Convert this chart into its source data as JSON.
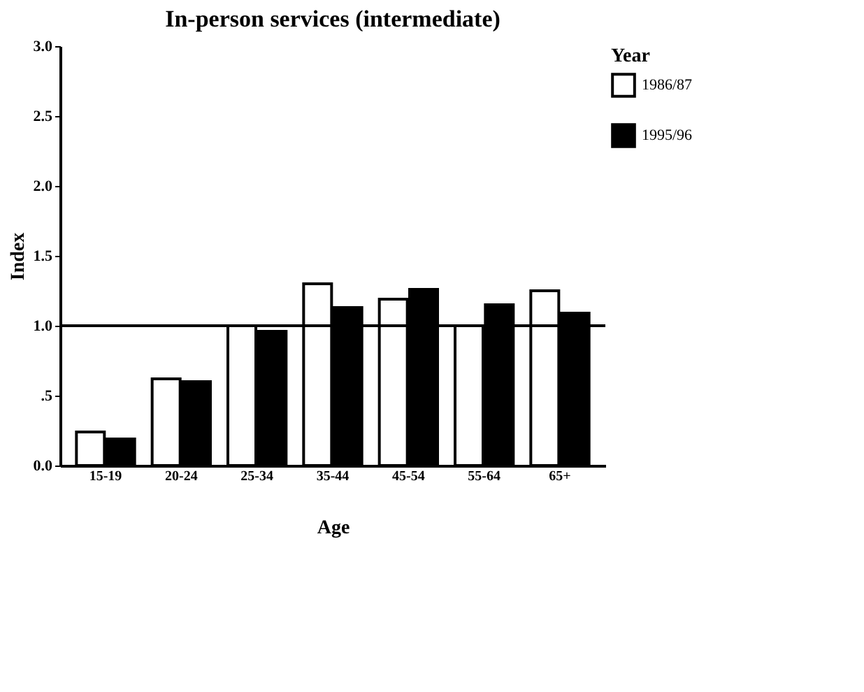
{
  "chart_data": {
    "type": "bar",
    "title": "In-person services (intermediate)",
    "xlabel": "Age",
    "ylabel": "Index",
    "legend_title": "Year",
    "categories": [
      "15-19",
      "20-24",
      "25-34",
      "35-44",
      "45-54",
      "55-64",
      "65+"
    ],
    "series": [
      {
        "name": "1986/87",
        "color": "#ffffff",
        "values": [
          0.24,
          0.62,
          1.0,
          1.3,
          1.19,
          1.0,
          1.25
        ]
      },
      {
        "name": "1995/96",
        "color": "#000000",
        "values": [
          0.19,
          0.6,
          0.96,
          1.13,
          1.26,
          1.15,
          1.09
        ]
      }
    ],
    "ylim": [
      0,
      3
    ],
    "yticks": [
      "0.0",
      {
        "value": 0.5,
        "label": ".5"
      },
      "1.0",
      "1.5",
      "2.0",
      "2.5",
      "3.0"
    ],
    "ref_lines": [
      {
        "axis": "y",
        "value": 1.0,
        "color": "#000000"
      }
    ],
    "grid": false,
    "legend": "right"
  }
}
